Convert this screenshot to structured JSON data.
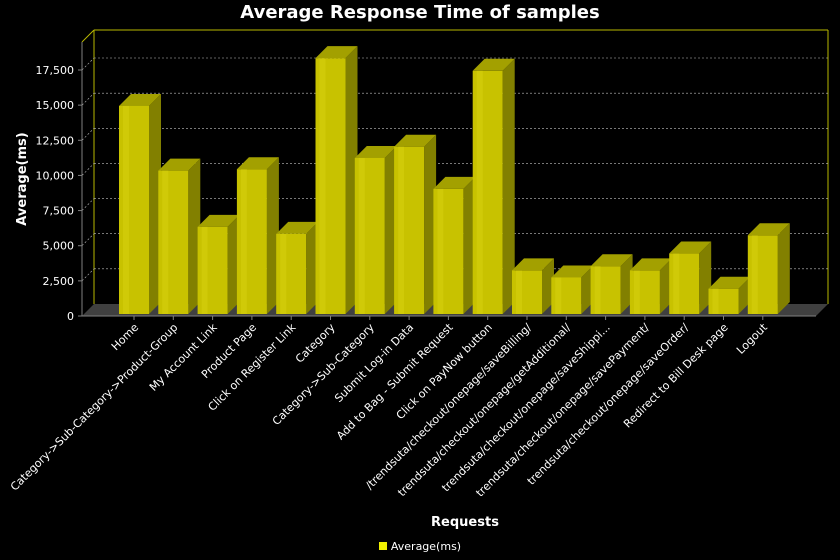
{
  "colors": {
    "background": "#000000",
    "bar_front": "#c8c200",
    "bar_side": "#828000",
    "bar_top": "#a3a000",
    "axis": "#808080",
    "grid": "#c0c0c0",
    "text": "#ffffff",
    "frame": "#b8b800"
  },
  "chart_data": {
    "type": "bar",
    "title": "Average Response Time of samples",
    "xlabel": "Requests",
    "ylabel": "Average(ms)",
    "ylim": [
      0,
      20000
    ],
    "yticks": [
      0,
      2500,
      5000,
      7500,
      10000,
      12500,
      15000,
      17500
    ],
    "ytick_labels": [
      "0",
      "2,500",
      "5,000",
      "7,500",
      "10,000",
      "12,500",
      "15,000",
      "17,500"
    ],
    "grid": true,
    "legend_position": "bottom",
    "categories": [
      "Home",
      "Category->Sub-Category->Product-Group",
      "My Account Link",
      "Product Page",
      "Click on Register Link",
      "Category",
      "Category->Sub-Category",
      "Submit Log-in Data",
      "Add to Bag - Submit Request",
      "Click on PayNow button",
      "/trendsuta/checkout/onepage/saveBilling/",
      "trendsuta/checkout/onepage/getAdditional/",
      "trendsuta/checkout/onepage/saveShippi...",
      "trendsuta/checkout/onepage/savePayment/",
      "trendsuta/checkout/onepage/saveOrder/",
      "Redirect to Bill Desk page",
      "Logout"
    ],
    "series": [
      {
        "name": "Average(ms)",
        "values": [
          14800,
          10200,
          6200,
          10300,
          5700,
          18200,
          11100,
          11900,
          8900,
          17300,
          3100,
          2600,
          3400,
          3100,
          4300,
          1800,
          5600
        ]
      }
    ]
  }
}
